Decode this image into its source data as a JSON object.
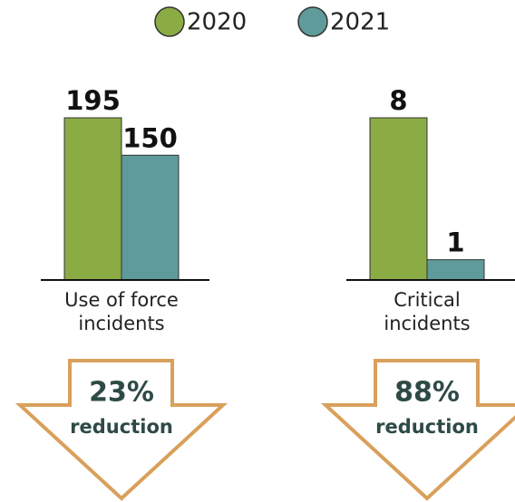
{
  "legend": [
    {
      "name": "2020",
      "color": "#8bab45"
    },
    {
      "name": "2021",
      "color": "#5f9b9a"
    }
  ],
  "chart_data": [
    {
      "type": "bar",
      "xlabel": "Use of force incidents",
      "values": [
        195,
        150
      ],
      "ylim": [
        0,
        195
      ],
      "annotations": [
        "23%",
        "reduction"
      ]
    },
    {
      "type": "bar",
      "xlabel": "Critical incidents",
      "values": [
        8,
        1
      ],
      "ylim": [
        0,
        8
      ],
      "annotations": [
        "88%",
        "reduction"
      ]
    }
  ]
}
